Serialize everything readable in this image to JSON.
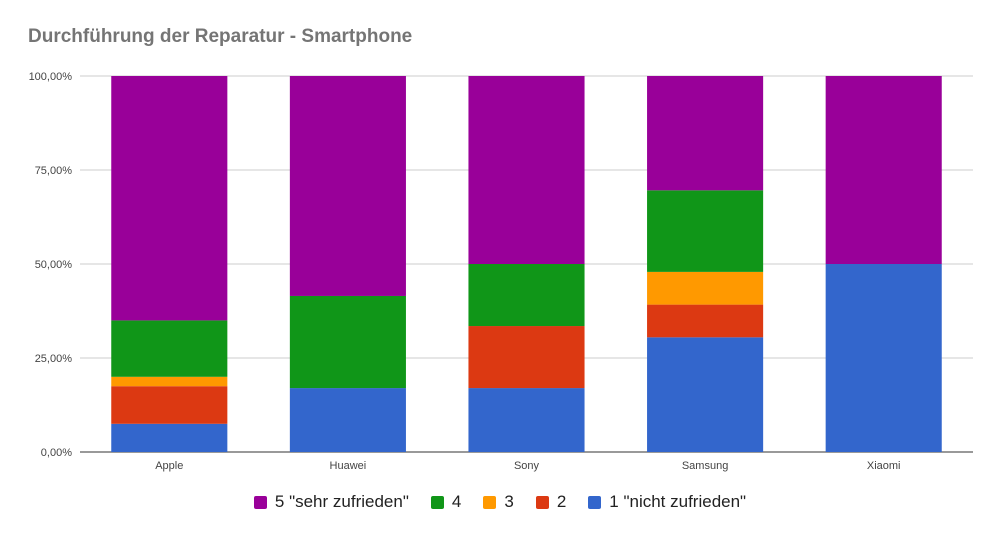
{
  "chart_data": {
    "type": "bar",
    "stacked": true,
    "normalized": true,
    "title": "Durchführung der Reparatur - Smartphone",
    "xlabel": "",
    "ylabel": "",
    "ylim": [
      0,
      100
    ],
    "y_ticks": [
      "0,00%",
      "25,00%",
      "50,00%",
      "75,00%",
      "100,00%"
    ],
    "grid": true,
    "legend_position": "bottom",
    "categories": [
      "Apple",
      "Huawei",
      "Sony",
      "Samsung",
      "Xiaomi"
    ],
    "series": [
      {
        "name": "1 \"nicht zufrieden\"",
        "color": "#3366cc",
        "values": [
          7.5,
          17.0,
          17.0,
          30.5,
          50.0
        ]
      },
      {
        "name": "2",
        "color": "#dc3912",
        "values": [
          10.0,
          0.0,
          16.5,
          8.7,
          0.0
        ]
      },
      {
        "name": "3",
        "color": "#ff9900",
        "values": [
          2.5,
          0.0,
          0.0,
          8.7,
          0.0
        ]
      },
      {
        "name": "4",
        "color": "#109618",
        "values": [
          15.0,
          24.5,
          16.5,
          21.7,
          0.0
        ]
      },
      {
        "name": "5 \"sehr zufrieden\"",
        "color": "#990099",
        "values": [
          65.0,
          58.5,
          50.0,
          30.4,
          50.0
        ]
      }
    ]
  }
}
